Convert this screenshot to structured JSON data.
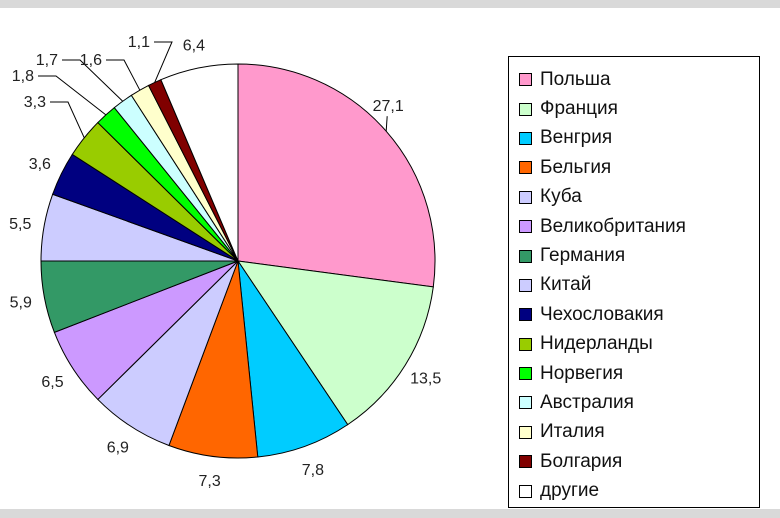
{
  "chart_data": {
    "type": "pie",
    "slices": [
      {
        "label": "Польша",
        "value": 27.1,
        "text": "27,1",
        "color": "#ff99cc"
      },
      {
        "label": "Франция",
        "value": 13.5,
        "text": "13,5",
        "color": "#ccffcc"
      },
      {
        "label": "Венгрия",
        "value": 7.8,
        "text": "7,8",
        "color": "#00ccff"
      },
      {
        "label": "Бельгия",
        "value": 7.3,
        "text": "7,3",
        "color": "#ff6600"
      },
      {
        "label": "Куба",
        "value": 6.9,
        "text": "6,9",
        "color": "#ccccff"
      },
      {
        "label": "Великобритания",
        "value": 6.5,
        "text": "6,5",
        "color": "#cc99ff"
      },
      {
        "label": "Германия",
        "value": 5.9,
        "text": "5,9",
        "color": "#339966"
      },
      {
        "label": "Китай",
        "value": 5.5,
        "text": "5,5",
        "color": "#ccccff"
      },
      {
        "label": "Чехословакия",
        "value": 3.6,
        "text": "3,6",
        "color": "#000080"
      },
      {
        "label": "Нидерланды",
        "value": 3.3,
        "text": "3,3",
        "color": "#99cc00"
      },
      {
        "label": "Норвегия",
        "value": 1.8,
        "text": "1,8",
        "color": "#00ff00"
      },
      {
        "label": "Австралия",
        "value": 1.7,
        "text": "1,7",
        "color": "#ccffff"
      },
      {
        "label": "Италия",
        "value": 1.6,
        "text": "1,6",
        "color": "#ffffcc"
      },
      {
        "label": "Болгария",
        "value": 1.1,
        "text": "1,1",
        "color": "#800000"
      },
      {
        "label": "другие",
        "value": 6.4,
        "text": "6,4",
        "color": "#ffffff"
      }
    ],
    "legend_position": "right"
  }
}
